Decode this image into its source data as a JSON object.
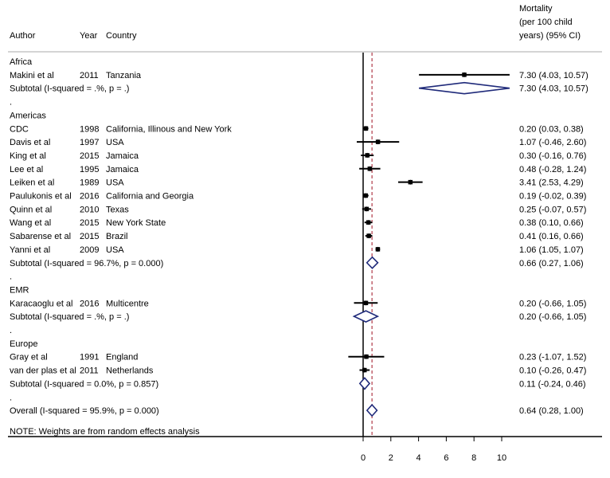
{
  "chart_data": {
    "type": "forest",
    "header": {
      "author": "Author",
      "year": "Year",
      "country": "Country",
      "effect_label_lines": [
        "Mortality",
        "(per 100 child",
        "years) (95% CI)"
      ]
    },
    "null_line": 0,
    "overall_estimate_line": 0.64,
    "xaxis": {
      "ticks": [
        0,
        2,
        4,
        6,
        8,
        10
      ],
      "range": [
        -1.07,
        10.57
      ]
    },
    "rows": [
      {
        "kind": "group",
        "label": "Africa"
      },
      {
        "kind": "study",
        "author": "Makini et al",
        "year": "2011",
        "country": "Tanzania",
        "est": 7.3,
        "lo": 4.03,
        "hi": 10.57,
        "ci_text": "7.30 (4.03, 10.57)"
      },
      {
        "kind": "subtotal",
        "label": "Subtotal  (I-squared = .%, p = .)",
        "est": 7.3,
        "lo": 4.03,
        "hi": 10.57,
        "ci_text": "7.30 (4.03, 10.57)"
      },
      {
        "kind": "spacer",
        "label": "."
      },
      {
        "kind": "group",
        "label": "Americas"
      },
      {
        "kind": "study",
        "author": "CDC",
        "year": "1998",
        "country": "California, Illinous and New York",
        "est": 0.2,
        "lo": 0.03,
        "hi": 0.38,
        "ci_text": "0.20 (0.03, 0.38)"
      },
      {
        "kind": "study",
        "author": "Davis et al",
        "year": "1997",
        "country": "USA",
        "est": 1.07,
        "lo": -0.46,
        "hi": 2.6,
        "ci_text": "1.07 (-0.46, 2.60)"
      },
      {
        "kind": "study",
        "author": "King et al",
        "year": "2015",
        "country": "Jamaica",
        "est": 0.3,
        "lo": -0.16,
        "hi": 0.76,
        "ci_text": "0.30 (-0.16, 0.76)"
      },
      {
        "kind": "study",
        "author": "Lee et al",
        "year": "1995",
        "country": "Jamaica",
        "est": 0.48,
        "lo": -0.28,
        "hi": 1.24,
        "ci_text": "0.48 (-0.28, 1.24)"
      },
      {
        "kind": "study",
        "author": "Leiken et al",
        "year": "1989",
        "country": "USA",
        "est": 3.41,
        "lo": 2.53,
        "hi": 4.29,
        "ci_text": "3.41 (2.53, 4.29)"
      },
      {
        "kind": "study",
        "author": "Paulukonis et al",
        "year": "2016",
        "country": "California and Georgia",
        "est": 0.19,
        "lo": -0.02,
        "hi": 0.39,
        "ci_text": "0.19 (-0.02, 0.39)"
      },
      {
        "kind": "study",
        "author": "Quinn et al",
        "year": "2010",
        "country": "Texas",
        "est": 0.25,
        "lo": -0.07,
        "hi": 0.57,
        "ci_text": "0.25 (-0.07, 0.57)"
      },
      {
        "kind": "study",
        "author": "Wang et al",
        "year": "2015",
        "country": "New York State",
        "est": 0.38,
        "lo": 0.1,
        "hi": 0.66,
        "ci_text": "0.38 (0.10, 0.66)"
      },
      {
        "kind": "study",
        "author": "Sabarense et al",
        "year": "2015",
        "country": "Brazil",
        "est": 0.41,
        "lo": 0.16,
        "hi": 0.66,
        "ci_text": "0.41 (0.16, 0.66)"
      },
      {
        "kind": "study",
        "author": "Yanni et al",
        "year": "2009",
        "country": "USA",
        "est": 1.06,
        "lo": 1.05,
        "hi": 1.07,
        "ci_text": "1.06 (1.05, 1.07)"
      },
      {
        "kind": "subtotal",
        "label": "Subtotal  (I-squared = 96.7%, p = 0.000)",
        "est": 0.66,
        "lo": 0.27,
        "hi": 1.06,
        "ci_text": "0.66 (0.27, 1.06)"
      },
      {
        "kind": "spacer",
        "label": "."
      },
      {
        "kind": "group",
        "label": "EMR"
      },
      {
        "kind": "study",
        "author": "Karacaoglu et al",
        "year": "2016",
        "country": "Multicentre",
        "est": 0.2,
        "lo": -0.66,
        "hi": 1.05,
        "ci_text": "0.20 (-0.66, 1.05)"
      },
      {
        "kind": "subtotal",
        "label": "Subtotal  (I-squared = .%, p = .)",
        "est": 0.2,
        "lo": -0.66,
        "hi": 1.05,
        "ci_text": "0.20 (-0.66, 1.05)"
      },
      {
        "kind": "spacer",
        "label": "."
      },
      {
        "kind": "group",
        "label": "Europe"
      },
      {
        "kind": "study",
        "author": "Gray et al",
        "year": "1991",
        "country": "England",
        "est": 0.23,
        "lo": -1.07,
        "hi": 1.52,
        "ci_text": "0.23 (-1.07, 1.52)"
      },
      {
        "kind": "study",
        "author": "van der plas et al",
        "year": "2011",
        "country": "Netherlands",
        "est": 0.1,
        "lo": -0.26,
        "hi": 0.47,
        "ci_text": "0.10 (-0.26, 0.47)"
      },
      {
        "kind": "subtotal",
        "label": "Subtotal  (I-squared = 0.0%, p = 0.857)",
        "est": 0.11,
        "lo": -0.24,
        "hi": 0.46,
        "ci_text": "0.11 (-0.24, 0.46)"
      },
      {
        "kind": "spacer",
        "label": "."
      },
      {
        "kind": "overall",
        "label": "Overall  (I-squared = 95.9%, p = 0.000)",
        "est": 0.64,
        "lo": 0.28,
        "hi": 1.0,
        "ci_text": "0.64 (0.28, 1.00)"
      }
    ],
    "note": "NOTE: Weights are from random effects analysis",
    "colors": {
      "diamond": "#1f2a7a",
      "overall_line": "#b03a48",
      "axis": "#000000",
      "separator": "#aaaaaa"
    }
  }
}
